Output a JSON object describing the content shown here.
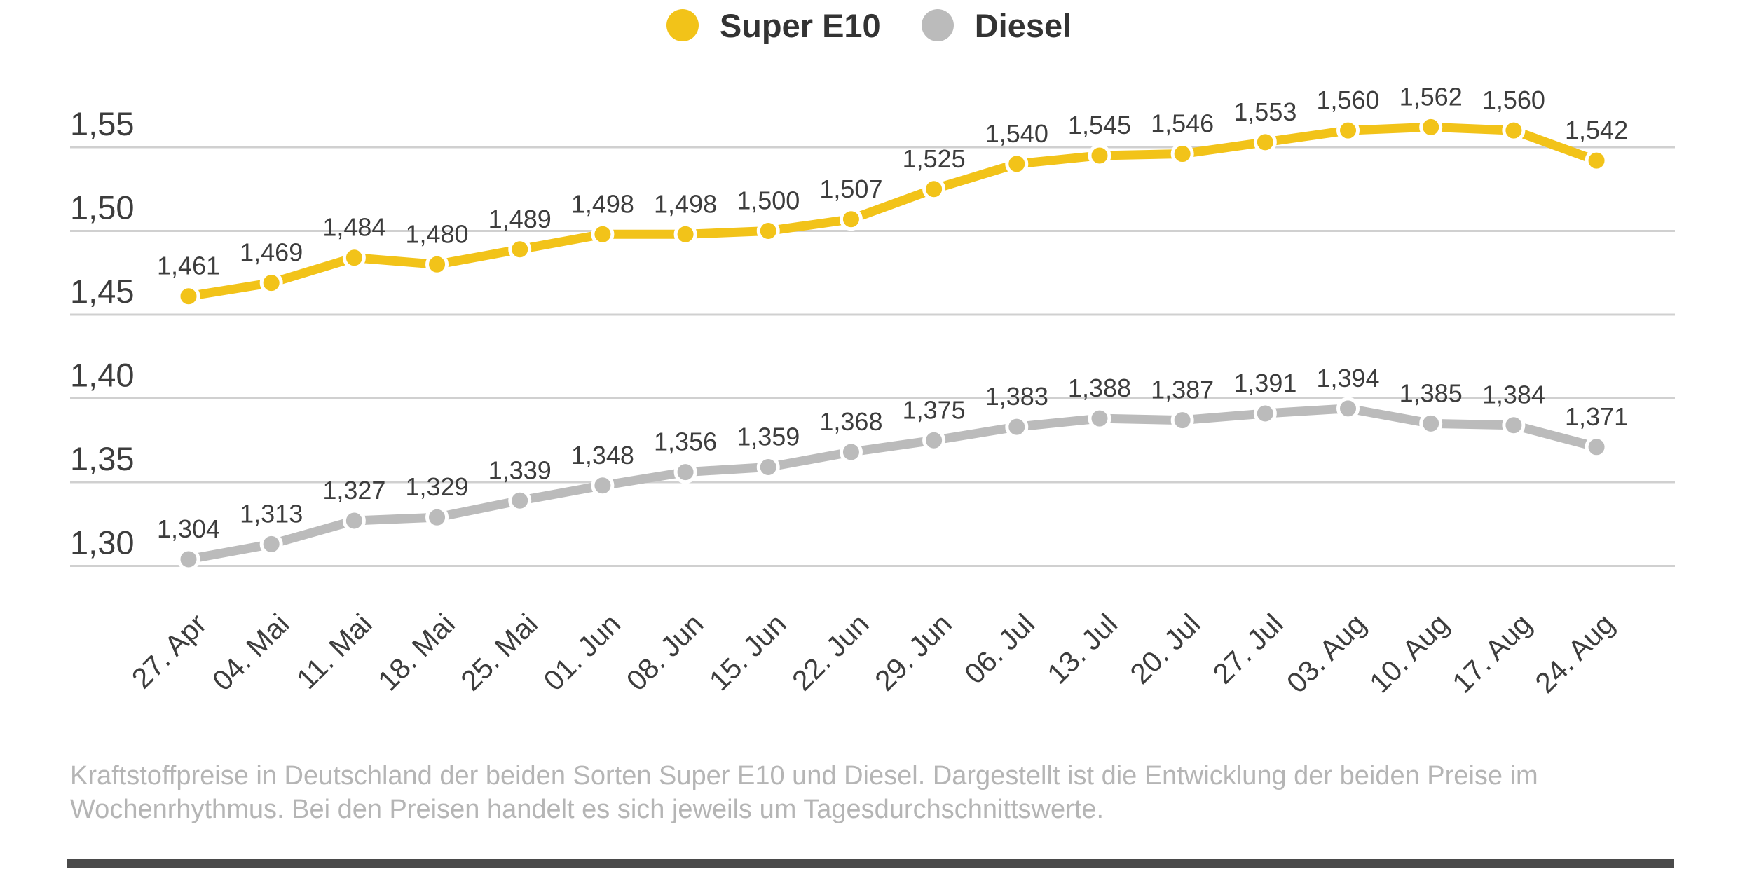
{
  "legend": {
    "items": [
      {
        "label": "Super E10",
        "color": "#F2C319"
      },
      {
        "label": "Diesel",
        "color": "#BBBBBB"
      }
    ]
  },
  "chart_data": {
    "type": "line",
    "x": [
      "27. Apr",
      "04. Mai",
      "11. Mai",
      "18. Mai",
      "25. Mai",
      "01. Jun",
      "08. Jun",
      "15. Jun",
      "22. Jun",
      "29. Jun",
      "06. Jul",
      "13. Jul",
      "20. Jul",
      "27. Jul",
      "03. Aug",
      "10. Aug",
      "17. Aug",
      "24. Aug"
    ],
    "series": [
      {
        "name": "Super E10",
        "color": "#F2C319",
        "values": [
          1.461,
          1.469,
          1.484,
          1.48,
          1.489,
          1.498,
          1.498,
          1.5,
          1.507,
          1.525,
          1.54,
          1.545,
          1.546,
          1.553,
          1.56,
          1.562,
          1.56,
          1.542
        ],
        "labels": [
          "1,461",
          "1,469",
          "1,484",
          "1,480",
          "1,489",
          "1,498",
          "1,498",
          "1,500",
          "1,507",
          "1,525",
          "1,540",
          "1,545",
          "1,546",
          "1,553",
          "1,560",
          "1,562",
          "1,560",
          "1,542"
        ]
      },
      {
        "name": "Diesel",
        "color": "#BBBBBB",
        "values": [
          1.304,
          1.313,
          1.327,
          1.329,
          1.339,
          1.348,
          1.356,
          1.359,
          1.368,
          1.375,
          1.383,
          1.388,
          1.387,
          1.391,
          1.394,
          1.385,
          1.384,
          1.371
        ],
        "labels": [
          "1,304",
          "1,313",
          "1,327",
          "1,329",
          "1,339",
          "1,348",
          "1,356",
          "1,359",
          "1,368",
          "1,375",
          "1,383",
          "1,388",
          "1,387",
          "1,391",
          "1,394",
          "1,385",
          "1,384",
          "1,371"
        ]
      }
    ],
    "yticks": [
      {
        "value": 1.55,
        "label": "1,55"
      },
      {
        "value": 1.5,
        "label": "1,50"
      },
      {
        "value": 1.45,
        "label": "1,45"
      },
      {
        "value": 1.4,
        "label": "1,40"
      },
      {
        "value": 1.35,
        "label": "1,35"
      },
      {
        "value": 1.3,
        "label": "1,30"
      }
    ],
    "ylim": [
      1.29,
      1.575
    ],
    "grid": "horizontal",
    "legend_position": "top-center",
    "title": "",
    "xlabel": "",
    "ylabel": ""
  },
  "caption": {
    "line1": "Kraftstoffpreise in Deutschland der beiden Sorten Super E10 und Diesel. Dargestellt ist die Entwicklung der beiden Preise im",
    "line2": "Wochenrhythmus. Bei den Preisen handelt es sich jeweils um Tagesdurchschnittswerte."
  },
  "colors": {
    "grid_line": "#d0d0d0",
    "axis_text": "#3d3d3d",
    "caption_text": "#b5b5b5",
    "bottom_bar": "#4a4a4a",
    "background": "#ffffff"
  }
}
